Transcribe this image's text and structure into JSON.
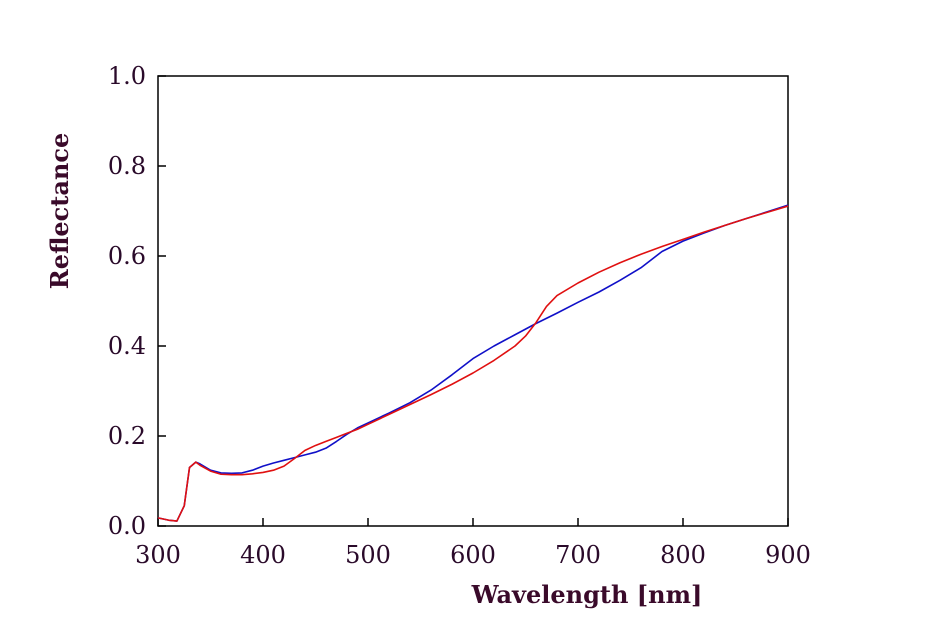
{
  "chart_data": {
    "type": "line",
    "title": "",
    "xlabel": "Wavelength [nm]",
    "ylabel": "Reflectance",
    "xlim": [
      300,
      900
    ],
    "ylim": [
      0.0,
      1.0
    ],
    "x_ticks": [
      "300",
      "400",
      "500",
      "600",
      "700",
      "800",
      "900"
    ],
    "y_ticks": [
      "0.0",
      "0.2",
      "0.4",
      "0.6",
      "0.8",
      "1.0"
    ],
    "grid": false,
    "legend": "none",
    "series": [
      {
        "color": "#1010c8",
        "points": [
          [
            300,
            0.018
          ],
          [
            310,
            0.013
          ],
          [
            318,
            0.011
          ],
          [
            325,
            0.045
          ],
          [
            330,
            0.13
          ],
          [
            336,
            0.142
          ],
          [
            340,
            0.138
          ],
          [
            350,
            0.124
          ],
          [
            360,
            0.118
          ],
          [
            370,
            0.117
          ],
          [
            380,
            0.118
          ],
          [
            390,
            0.124
          ],
          [
            400,
            0.133
          ],
          [
            410,
            0.14
          ],
          [
            420,
            0.146
          ],
          [
            430,
            0.152
          ],
          [
            440,
            0.158
          ],
          [
            450,
            0.164
          ],
          [
            460,
            0.173
          ],
          [
            470,
            0.188
          ],
          [
            480,
            0.204
          ],
          [
            490,
            0.218
          ],
          [
            500,
            0.229
          ],
          [
            520,
            0.251
          ],
          [
            540,
            0.274
          ],
          [
            560,
            0.302
          ],
          [
            580,
            0.336
          ],
          [
            600,
            0.372
          ],
          [
            620,
            0.4
          ],
          [
            640,
            0.425
          ],
          [
            660,
            0.45
          ],
          [
            680,
            0.473
          ],
          [
            700,
            0.497
          ],
          [
            720,
            0.52
          ],
          [
            740,
            0.546
          ],
          [
            760,
            0.574
          ],
          [
            780,
            0.61
          ],
          [
            800,
            0.633
          ],
          [
            820,
            0.651
          ],
          [
            840,
            0.668
          ],
          [
            860,
            0.683
          ],
          [
            880,
            0.698
          ],
          [
            900,
            0.713
          ]
        ]
      },
      {
        "color": "#e01010",
        "points": [
          [
            300,
            0.018
          ],
          [
            310,
            0.013
          ],
          [
            318,
            0.011
          ],
          [
            325,
            0.045
          ],
          [
            330,
            0.13
          ],
          [
            336,
            0.142
          ],
          [
            340,
            0.135
          ],
          [
            350,
            0.122
          ],
          [
            360,
            0.115
          ],
          [
            370,
            0.114
          ],
          [
            380,
            0.114
          ],
          [
            390,
            0.116
          ],
          [
            400,
            0.119
          ],
          [
            410,
            0.124
          ],
          [
            420,
            0.133
          ],
          [
            430,
            0.15
          ],
          [
            440,
            0.168
          ],
          [
            450,
            0.179
          ],
          [
            460,
            0.188
          ],
          [
            470,
            0.197
          ],
          [
            480,
            0.206
          ],
          [
            490,
            0.215
          ],
          [
            500,
            0.226
          ],
          [
            520,
            0.248
          ],
          [
            540,
            0.27
          ],
          [
            560,
            0.292
          ],
          [
            580,
            0.315
          ],
          [
            600,
            0.34
          ],
          [
            620,
            0.368
          ],
          [
            640,
            0.4
          ],
          [
            650,
            0.422
          ],
          [
            660,
            0.452
          ],
          [
            670,
            0.488
          ],
          [
            680,
            0.512
          ],
          [
            700,
            0.54
          ],
          [
            720,
            0.564
          ],
          [
            740,
            0.585
          ],
          [
            760,
            0.604
          ],
          [
            780,
            0.621
          ],
          [
            800,
            0.637
          ],
          [
            820,
            0.653
          ],
          [
            840,
            0.668
          ],
          [
            860,
            0.683
          ],
          [
            880,
            0.697
          ],
          [
            900,
            0.711
          ]
        ]
      }
    ]
  }
}
